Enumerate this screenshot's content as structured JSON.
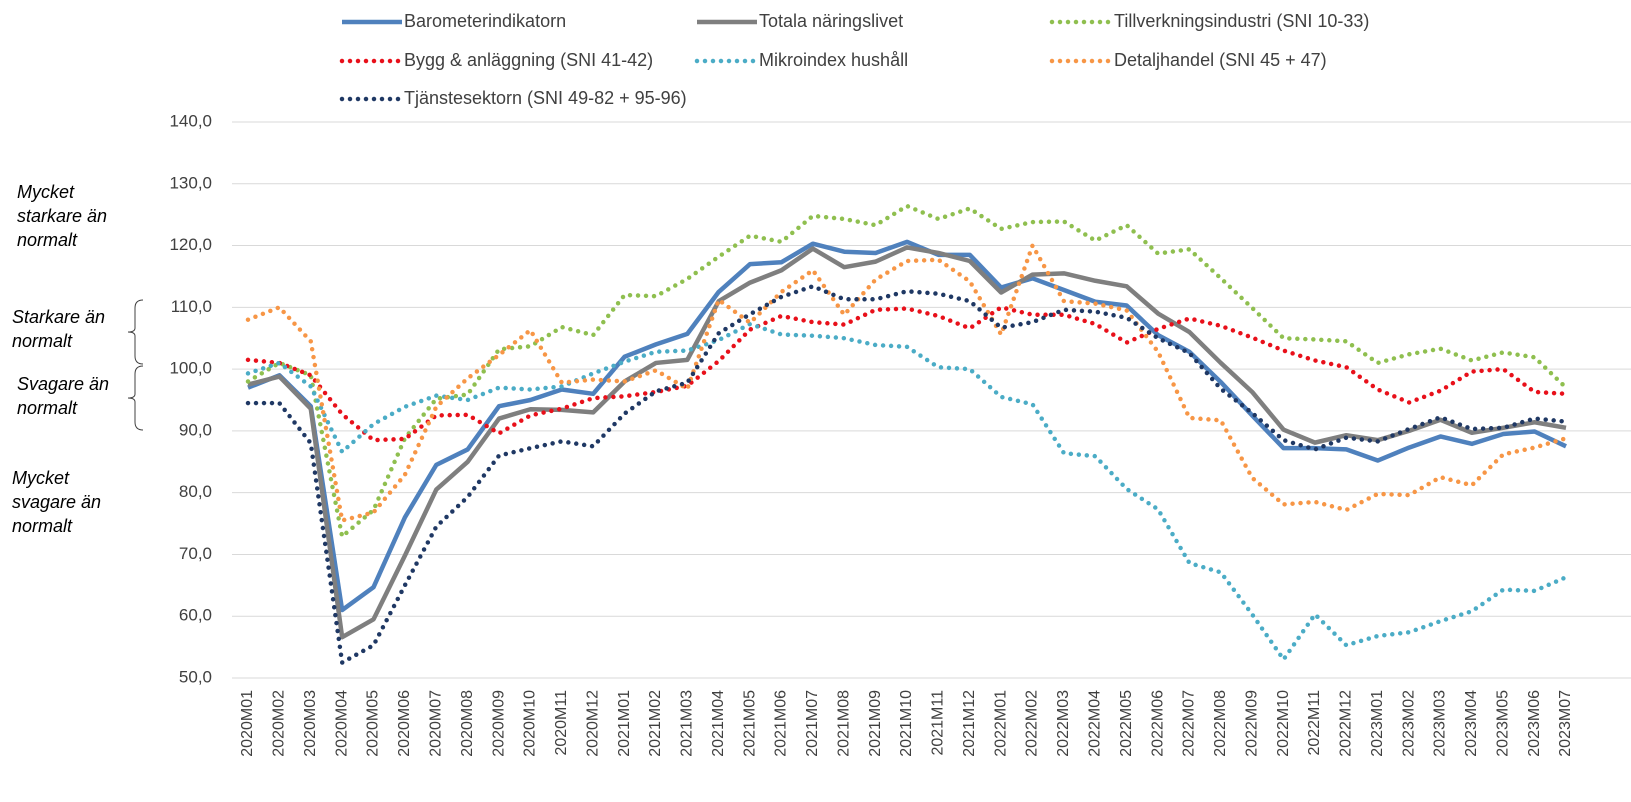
{
  "chart_data": {
    "type": "line",
    "categories": [
      "2020M01",
      "2020M02",
      "2020M03",
      "2020M04",
      "2020M05",
      "2020M06",
      "2020M07",
      "2020M08",
      "2020M09",
      "2020M10",
      "2020M11",
      "2020M12",
      "2021M01",
      "2021M02",
      "2021M03",
      "2021M04",
      "2021M05",
      "2021M06",
      "2021M07",
      "2021M08",
      "2021M09",
      "2021M10",
      "2021M11",
      "2021M12",
      "2022M01",
      "2022M02",
      "2022M03",
      "2022M04",
      "2022M05",
      "2022M06",
      "2022M07",
      "2022M08",
      "2022M09",
      "2022M10",
      "2022M11",
      "2022M12",
      "2023M01",
      "2023M02",
      "2023M03",
      "2023M04",
      "2023M05",
      "2023M06",
      "2023M07"
    ],
    "ylim": [
      50,
      140
    ],
    "yticks": [
      {
        "value": 50,
        "label": "50,0"
      },
      {
        "value": 60,
        "label": "60,0"
      },
      {
        "value": 70,
        "label": "70,0"
      },
      {
        "value": 80,
        "label": "80,0"
      },
      {
        "value": 90,
        "label": "90,0"
      },
      {
        "value": 100,
        "label": "100,0"
      },
      {
        "value": 110,
        "label": "110,0"
      },
      {
        "value": 120,
        "label": "120,0"
      },
      {
        "value": 130,
        "label": "130,0"
      },
      {
        "value": 140,
        "label": "140,0"
      }
    ],
    "grid": true,
    "annotations": [
      {
        "lines": [
          "Mycket",
          "starkare än",
          "normalt"
        ]
      },
      {
        "lines": [
          "Starkare än",
          "normalt"
        ]
      },
      {
        "lines": [
          "Svagare än",
          "normalt"
        ]
      },
      {
        "lines": [
          "Mycket",
          "svagare än",
          "normalt"
        ]
      }
    ],
    "series": [
      {
        "name": "Barometerindikatorn",
        "color": "#4f81bd",
        "dash": "solid",
        "values": [
          97,
          99,
          94,
          61,
          64.7,
          76,
          84.5,
          87,
          94,
          95,
          96.7,
          96,
          102,
          104,
          105.7,
          112.5,
          117,
          117.3,
          120.3,
          119,
          118.8,
          120.6,
          118.5,
          118.5,
          113.2,
          114.7,
          112.8,
          110.9,
          110.3,
          105.5,
          102.8,
          97.9,
          92.5,
          87.2,
          87.2,
          87,
          85.2,
          87.3,
          89.1,
          87.9,
          89.5,
          89.9,
          87.5
        ]
      },
      {
        "name": "Totala näringslivet",
        "color": "#7f7f7f",
        "dash": "solid",
        "values": [
          97.5,
          98.8,
          93.6,
          56.6,
          59.5,
          69.8,
          80.5,
          85,
          92,
          93.5,
          93.4,
          93,
          98,
          101,
          101.5,
          111,
          114,
          116,
          119.5,
          116.5,
          117.4,
          119.7,
          118.8,
          117.5,
          112.4,
          115.3,
          115.5,
          114.3,
          113.4,
          109,
          106,
          101,
          96.3,
          90.2,
          88.1,
          89.3,
          88.5,
          90,
          91.8,
          89.7,
          90.5,
          91.4,
          90.5
        ]
      },
      {
        "name": "Tillverkningsindustri (SNI 10-33)",
        "color": "#8fbf4f",
        "dash": "dot",
        "values": [
          98,
          101,
          99,
          72.9,
          77.2,
          88.8,
          95.2,
          95.9,
          103.2,
          103.7,
          106.8,
          105.5,
          112,
          111.8,
          114.6,
          118.2,
          121.6,
          120.6,
          124.8,
          124.3,
          123.3,
          126.4,
          124.3,
          126,
          122.7,
          123.8,
          123.9,
          120.8,
          123.3,
          118.7,
          119.4,
          114.7,
          109.9,
          105,
          104.8,
          104.5,
          101,
          102.4,
          103.3,
          101.4,
          102.7,
          101.9,
          97
        ]
      },
      {
        "name": "Bygg & anläggning (SNI 41-42)",
        "color": "#e8101a",
        "dash": "dot",
        "values": [
          101.5,
          101,
          99,
          92.7,
          88.5,
          88.7,
          92.5,
          92.6,
          89.6,
          92.5,
          93.6,
          95.3,
          95.6,
          96.3,
          97.3,
          101.3,
          106.4,
          108.6,
          107.6,
          107.2,
          109.6,
          109.8,
          108.6,
          106.6,
          110,
          108.8,
          108.8,
          107.3,
          104.3,
          106.5,
          108.2,
          107,
          105.1,
          103,
          101.4,
          100.3,
          96.7,
          94.6,
          96.5,
          99.6,
          100,
          96.3,
          96
        ]
      },
      {
        "name": "Mikroindex hushåll",
        "color": "#4bacc6",
        "dash": "dot",
        "values": [
          99.3,
          101,
          97.2,
          86.6,
          91.1,
          93.9,
          95.7,
          95,
          97,
          96.7,
          97.2,
          99.3,
          101.2,
          102.8,
          103,
          104.7,
          107.3,
          105.6,
          105.4,
          105,
          103.9,
          103.6,
          100.3,
          100,
          95.5,
          94.3,
          86.4,
          85.9,
          80.6,
          77.3,
          68.6,
          67.1,
          60.3,
          53,
          60.3,
          55.3,
          56.8,
          57.4,
          59.2,
          60.8,
          64.3,
          64.1,
          66.3
        ]
      },
      {
        "name": "Detaljhandel (SNI 45 + 47)",
        "color": "#f79646",
        "dash": "dot",
        "values": [
          108,
          110,
          104.5,
          75.5,
          76.8,
          82.9,
          93.9,
          98.5,
          102.3,
          106.3,
          97.8,
          98.3,
          98,
          99.8,
          96.8,
          111.2,
          107.5,
          112.5,
          116,
          108.8,
          114.5,
          117.5,
          117.7,
          114.2,
          105.6,
          120,
          111,
          110.6,
          109.5,
          102.8,
          92.1,
          91.7,
          82.4,
          78.1,
          78.5,
          77.2,
          79.8,
          79.6,
          82.5,
          81.2,
          86.2,
          87.3,
          88.8
        ]
      },
      {
        "name": "Tjänstesektorn (SNI 49-82 + 95-96)",
        "color": "#1f3864",
        "dash": "dot",
        "values": [
          94.5,
          94.5,
          88,
          52.5,
          55.3,
          65,
          74.5,
          79.3,
          86,
          87.2,
          88.3,
          87.5,
          92.8,
          96.4,
          97.8,
          105.8,
          108.9,
          111.7,
          113.4,
          111.3,
          111.3,
          112.6,
          112.2,
          111,
          106.7,
          107.6,
          109.6,
          109.3,
          108.3,
          105,
          102.6,
          96.8,
          92.9,
          88.5,
          87,
          88.9,
          88.3,
          90.3,
          92.2,
          90.3,
          90.5,
          92,
          91.5
        ]
      }
    ]
  }
}
